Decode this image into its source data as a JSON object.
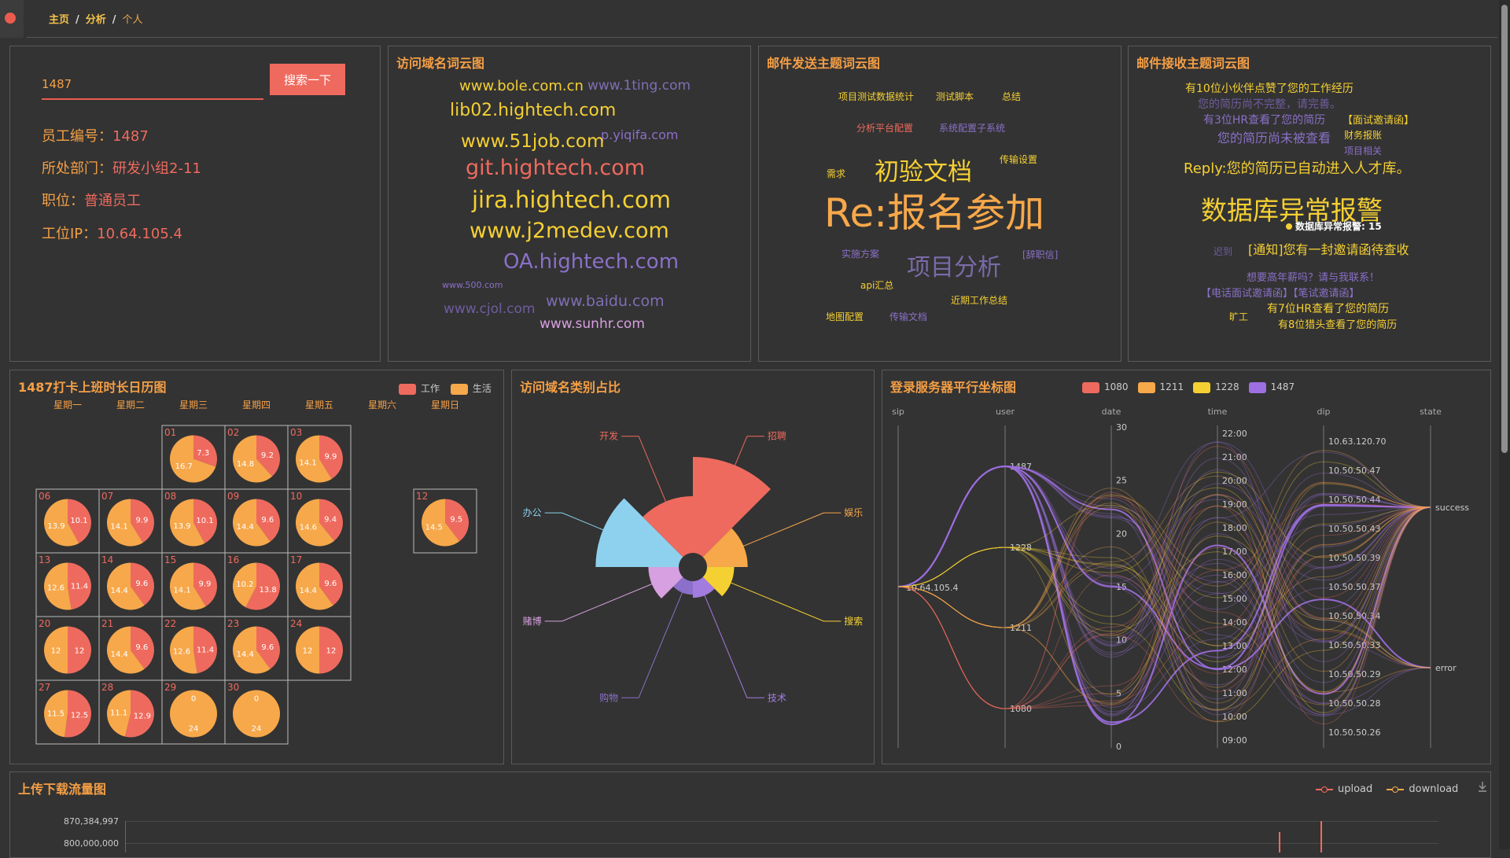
{
  "nav": {
    "crumb1": "主页",
    "crumb2": "分析",
    "crumb3": "个人",
    "sep": "/"
  },
  "colors": {
    "work": "#ef6a5e",
    "life": "#f7a84a",
    "accent": "#f59f45"
  },
  "profile": {
    "search_value": "1487",
    "search_button": "搜索一下",
    "emp_label": "员工编号：",
    "emp_value": "1487",
    "dept_label": "所处部门：",
    "dept_value": "研发小组2-11",
    "title_label": "职位：",
    "title_value": "普通员工",
    "ip_label": "工位IP：",
    "ip_value": "10.64.105.4"
  },
  "domain_cloud": {
    "title": "访问域名词云图",
    "words": [
      "www.bole.com.cn",
      "www.1ting.com",
      "lib02.hightech.com",
      "p.yiqifa.com",
      "www.51job.com",
      "git.hightech.com",
      "jira.hightech.com",
      "www.j2medev.com",
      "OA.hightech.com",
      "www.500.com",
      "www.cjol.com",
      "www.baidu.com",
      "www.sunhr.com"
    ]
  },
  "send_cloud": {
    "title": "邮件发送主题词云图",
    "words": [
      "项目测试数据统计",
      "测试脚本",
      "总结",
      "分析平台配置",
      "系统配置子系统",
      "传输设置",
      "需求",
      "初验文档",
      "Re:报名参加",
      "实施方案",
      "项目分析",
      "[辞职信]",
      "api汇总",
      "近期工作总结",
      "地图配置",
      "传输文档"
    ]
  },
  "recv_cloud": {
    "title": "邮件接收主题词云图",
    "words": [
      "有10位小伙伴点赞了您的工作经历",
      "您的简历尚不完整，请完善。",
      "有3位HR查看了您的简历",
      "【面试邀请函】",
      "您的简历尚未被查看",
      "财务报账",
      "项目相关",
      "Reply:您的简历已自动进入人才库。",
      "数据库异常报警",
      "迟到",
      "[通知]您有一封邀请函待查收",
      "想要高年薪吗？请与我联系！",
      "【电话面试邀请函】【笔试邀请函】",
      "旷工",
      "有7位HR查看了您的简历",
      "有8位猎头查看了您的简历"
    ],
    "tooltip": "数据库异常报警: 15"
  },
  "calendar": {
    "title": "1487打卡上班时长日历图",
    "legend": [
      "工作",
      "生活"
    ],
    "weekdays": [
      "星期一",
      "星期二",
      "星期三",
      "星期四",
      "星期五",
      "星期六",
      "星期日"
    ],
    "days": [
      {
        "d": "01",
        "w": 7.3,
        "l": 16.7,
        "row": 0,
        "col": 2
      },
      {
        "d": "02",
        "w": 9.2,
        "l": 14.8,
        "row": 0,
        "col": 3
      },
      {
        "d": "03",
        "w": 9.9,
        "l": 14.1,
        "row": 0,
        "col": 4
      },
      {
        "d": "06",
        "w": 10.1,
        "l": 13.9,
        "row": 1,
        "col": 0
      },
      {
        "d": "07",
        "w": 9.9,
        "l": 14.1,
        "row": 1,
        "col": 1
      },
      {
        "d": "08",
        "w": 10.1,
        "l": 13.9,
        "row": 1,
        "col": 2
      },
      {
        "d": "09",
        "w": 9.6,
        "l": 14.4,
        "row": 1,
        "col": 3
      },
      {
        "d": "10",
        "w": 9.4,
        "l": 14.6,
        "row": 1,
        "col": 4
      },
      {
        "d": "12",
        "w": 9.5,
        "l": 14.5,
        "row": 1,
        "col": 6
      },
      {
        "d": "13",
        "w": 11.4,
        "l": 12.6,
        "row": 2,
        "col": 0
      },
      {
        "d": "14",
        "w": 9.6,
        "l": 14.4,
        "row": 2,
        "col": 1
      },
      {
        "d": "15",
        "w": 9.9,
        "l": 14.1,
        "row": 2,
        "col": 2
      },
      {
        "d": "16",
        "w": 13.8,
        "l": 10.2,
        "row": 2,
        "col": 3
      },
      {
        "d": "17",
        "w": 9.6,
        "l": 14.4,
        "row": 2,
        "col": 4
      },
      {
        "d": "20",
        "w": 12,
        "l": 12,
        "row": 3,
        "col": 0
      },
      {
        "d": "21",
        "w": 9.6,
        "l": 14.4,
        "row": 3,
        "col": 1
      },
      {
        "d": "22",
        "w": 11.4,
        "l": 12.6,
        "row": 3,
        "col": 2
      },
      {
        "d": "23",
        "w": 9.6,
        "l": 14.4,
        "row": 3,
        "col": 3
      },
      {
        "d": "24",
        "w": 12,
        "l": 12,
        "row": 3,
        "col": 4
      },
      {
        "d": "27",
        "w": 12.5,
        "l": 11.5,
        "row": 4,
        "col": 0
      },
      {
        "d": "28",
        "w": 12.9,
        "l": 11.1,
        "row": 4,
        "col": 1
      },
      {
        "d": "29",
        "w": 0,
        "l": 24,
        "row": 4,
        "col": 2
      },
      {
        "d": "30",
        "w": 0,
        "l": 24,
        "row": 4,
        "col": 3
      }
    ]
  },
  "domain_type": {
    "title": "访问域名类别占比",
    "items": [
      {
        "name": "招聘",
        "value": 100,
        "color": "#ef6a5e"
      },
      {
        "name": "娱乐",
        "value": 18,
        "color": "#f7a84a"
      },
      {
        "name": "搜索",
        "value": 8,
        "color": "#f5d033"
      },
      {
        "name": "技术",
        "value": 3,
        "color": "#a37ce0"
      },
      {
        "name": "购物",
        "value": 2,
        "color": "#8a70c8"
      },
      {
        "name": "赌博",
        "value": 10,
        "color": "#d7a0e0"
      },
      {
        "name": "办公",
        "value": 75,
        "color": "#8dd1ee"
      },
      {
        "name": "开发",
        "value": 35,
        "color": "#ef6a5e"
      }
    ]
  },
  "parallel": {
    "title": "登录服务器平行坐标图",
    "legend": [
      {
        "name": "1080",
        "color": "#ef6a5e"
      },
      {
        "name": "1211",
        "color": "#f7a84a"
      },
      {
        "name": "1228",
        "color": "#f5d033"
      },
      {
        "name": "1487",
        "color": "#9d6fe0"
      }
    ],
    "axes": [
      "sip",
      "user",
      "date",
      "time",
      "dip",
      "state"
    ],
    "sip_label": "10.64.105.4",
    "user_labels": [
      "1487",
      "1228",
      "1211",
      "1080"
    ],
    "date_ticks": [
      "30",
      "25",
      "20",
      "15",
      "10",
      "5",
      "0"
    ],
    "time_ticks": [
      "22:00",
      "21:00",
      "20:00",
      "19:00",
      "18:00",
      "17:00",
      "16:00",
      "15:00",
      "14:00",
      "13:00",
      "12:00",
      "11:00",
      "10:00",
      "09:00"
    ],
    "dip_ticks": [
      "10.63.120.70",
      "10.50.50.47",
      "10.50.50.44",
      "10.50.50.43",
      "10.50.50.39",
      "10.50.50.37",
      "10.50.50.34",
      "10.50.50.33",
      "10.50.50.29",
      "10.50.50.28",
      "10.50.50.26"
    ],
    "state_labels": [
      "success",
      "error"
    ]
  },
  "traffic": {
    "title": "上传下载流量图",
    "legend": [
      "upload",
      "download"
    ],
    "y_ticks": [
      "870,384,997",
      "800,000,000"
    ]
  }
}
